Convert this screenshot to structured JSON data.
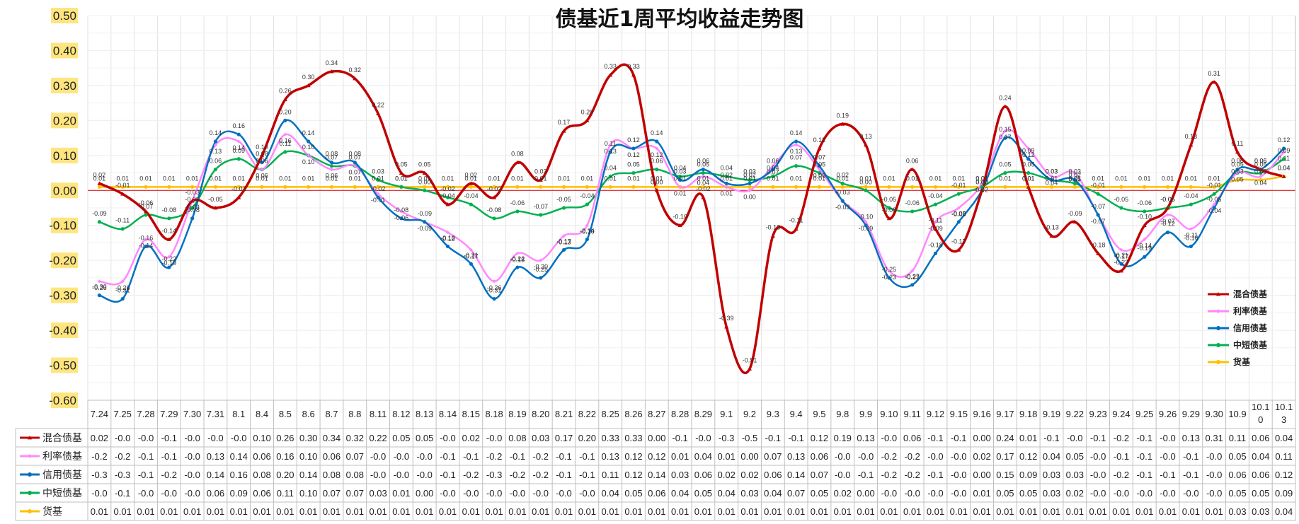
{
  "chart_data": {
    "type": "line",
    "title": "债基近1周平均收益走势图",
    "ylim": [
      -0.6,
      0.5
    ],
    "yticks": [
      "0.50",
      "0.40",
      "0.30",
      "0.20",
      "0.10",
      "0.00",
      "-0.10",
      "-0.20",
      "-0.30",
      "-0.40",
      "-0.50",
      "-0.60"
    ],
    "grid": true,
    "legend_position": "right",
    "categories": [
      "7.24",
      "7.25",
      "7.28",
      "7.29",
      "7.30",
      "7.31",
      "8.1",
      "8.4",
      "8.5",
      "8.6",
      "8.7",
      "8.8",
      "8.11",
      "8.12",
      "8.13",
      "8.14",
      "8.15",
      "8.18",
      "8.19",
      "8.20",
      "8.21",
      "8.22",
      "8.25",
      "8.26",
      "8.27",
      "8.28",
      "8.29",
      "9.1",
      "9.2",
      "9.3",
      "9.4",
      "9.5",
      "9.8",
      "9.9",
      "9.10",
      "9.11",
      "9.12",
      "9.15",
      "9.16",
      "9.17",
      "9.18",
      "9.19",
      "9.22",
      "9.23",
      "9.24",
      "9.25",
      "9.26",
      "9.29",
      "9.30",
      "10.9",
      "10.10",
      "10.13"
    ],
    "category_labels": [
      "7.24",
      "7.25",
      "7.28",
      "7.29",
      "7.30",
      "7.31",
      "8.1",
      "8.4",
      "8.5",
      "8.6",
      "8.7",
      "8.8",
      "8.11",
      "8.12",
      "8.13",
      "8.14",
      "8.15",
      "8.18",
      "8.19",
      "8.20",
      "8.21",
      "8.22",
      "8.25",
      "8.26",
      "8.27",
      "8.28",
      "8.29",
      "9.1",
      "9.2",
      "9.3",
      "9.4",
      "9.5",
      "9.8",
      "9.9",
      "9.10",
      "9.11",
      "9.12",
      "9.15",
      "9.16",
      "9.17",
      "9.18",
      "9.19",
      "9.22",
      "9.23",
      "9.24",
      "9.25",
      "9.26",
      "9.29",
      "9.30",
      "10.9",
      "10.1\n0",
      "10.1\n3"
    ],
    "series": [
      {
        "name": "混合债基",
        "color": "#c00000",
        "marker": "triangle",
        "values": [
          0.02,
          -0.01,
          -0.06,
          -0.14,
          -0.03,
          -0.05,
          -0.02,
          0.1,
          0.26,
          0.3,
          0.34,
          0.32,
          0.22,
          0.05,
          0.05,
          -0.04,
          0.02,
          -0.02,
          0.08,
          0.03,
          0.17,
          0.2,
          0.33,
          0.33,
          0.0,
          -0.1,
          -0.02,
          -0.39,
          -0.51,
          -0.13,
          -0.11,
          0.12,
          0.19,
          0.13,
          -0.08,
          0.06,
          -0.11,
          -0.17,
          0.0,
          0.24,
          0.01,
          -0.13,
          -0.09,
          -0.18,
          -0.23,
          -0.1,
          -0.05,
          0.13,
          0.31,
          0.11,
          0.06,
          0.04
        ],
        "labels": [
          "0.02",
          "-0.01",
          "-0.06",
          "-0.14",
          "-0.03",
          "-0.05",
          "-0.02",
          "0.10",
          "0.26",
          "0.30",
          "0.34",
          "0.32",
          "0.22",
          "0.05",
          "0.05",
          "-0.04",
          "0.02",
          "-0.02",
          "0.08",
          "0.03",
          "0.17",
          "0.20",
          "0.33",
          "0.33",
          "0.00",
          "-0.10",
          "-0.02",
          "-0.39",
          "-0.51",
          "-0.13",
          "-0.11",
          "0.12",
          "0.19",
          "0.13",
          "-0.08",
          "0.06",
          "-0.11",
          "-0.17",
          "0.00",
          "0.24",
          "0.01",
          "-0.13",
          "-0.09",
          "-0.18",
          "-0.23",
          "-0.10",
          "-0.05",
          "0.13",
          "0.31",
          "0.11",
          "0.06",
          "0.04"
        ]
      },
      {
        "name": "利率债基",
        "color": "#ff88ff",
        "marker": "diamond",
        "values": [
          -0.26,
          -0.26,
          -0.14,
          -0.19,
          -0.03,
          0.13,
          0.14,
          0.06,
          0.16,
          0.1,
          0.06,
          0.07,
          -0.01,
          -0.06,
          -0.09,
          -0.12,
          -0.17,
          -0.26,
          -0.18,
          -0.2,
          -0.13,
          -0.1,
          0.13,
          0.12,
          0.12,
          0.01,
          0.04,
          0.01,
          0.0,
          0.07,
          0.13,
          0.06,
          -0.03,
          -0.09,
          -0.23,
          -0.23,
          -0.09,
          -0.05,
          0.02,
          0.17,
          0.12,
          0.04,
          0.05,
          -0.07,
          -0.17,
          -0.14,
          -0.07,
          -0.11,
          -0.04,
          0.05,
          0.04,
          0.11
        ],
        "labels": [
          "-0.26",
          "-0.26",
          "-0.14",
          "-0.19",
          "-0.03",
          "0.13",
          "0.14",
          "0.06",
          "0.16",
          "0.10",
          "0.06",
          "0.07",
          "-0.01",
          "-0.06",
          "-0.09",
          "-0.12",
          "-0.17",
          "-0.26",
          "-0.18",
          "-0.20",
          "-0.13",
          "-0.10",
          "0.13",
          "0.12",
          "0.12",
          "0.01",
          "0.04",
          "0.01",
          "0.00",
          "0.07",
          "0.13",
          "0.06",
          "-0.03",
          "-0.09",
          "-0.23",
          "-0.23",
          "-0.09",
          "-0.05",
          "0.02",
          "0.17",
          "0.12",
          "0.04",
          "0.05",
          "-0.07",
          "-0.17",
          "-0.14",
          "-0.07",
          "-0.11",
          "-0.04",
          "0.05",
          "0.04",
          "0.11"
        ]
      },
      {
        "name": "信用债基",
        "color": "#0070c0",
        "marker": "circle",
        "values": [
          -0.3,
          -0.31,
          -0.16,
          -0.22,
          -0.08,
          0.14,
          0.16,
          0.08,
          0.2,
          0.14,
          0.08,
          0.08,
          -0.02,
          -0.08,
          -0.09,
          -0.16,
          -0.21,
          -0.31,
          -0.22,
          -0.25,
          -0.17,
          -0.14,
          0.11,
          0.12,
          0.14,
          0.03,
          0.06,
          0.02,
          0.02,
          0.06,
          0.14,
          0.07,
          -0.03,
          -0.1,
          -0.25,
          -0.27,
          -0.18,
          -0.09,
          0.0,
          0.15,
          0.09,
          0.03,
          0.03,
          -0.07,
          -0.21,
          -0.19,
          -0.12,
          -0.16,
          -0.05,
          0.06,
          0.06,
          0.12
        ],
        "labels": [
          "-0.30",
          "-0.31",
          "-0.16",
          "-0.22",
          "-0.08",
          "0.14",
          "0.16",
          "0.08",
          "0.20",
          "0.14",
          "0.08",
          "0.08",
          "-0.02",
          "-0.08",
          "-0.09",
          "-0.16",
          "-0.21",
          "-0.31",
          "-0.22",
          "-0.25",
          "-0.17",
          "-0.14",
          "0.11",
          "0.12",
          "0.14",
          "0.03",
          "0.06",
          "0.02",
          "0.02",
          "0.06",
          "0.14",
          "0.07",
          "-0.03",
          "-0.10",
          "-0.25",
          "-0.27",
          "-0.18",
          "-0.09",
          "0.00",
          "0.15",
          "0.09",
          "0.03",
          "0.03",
          "-0.07",
          "-0.21",
          "-0.19",
          "-0.12",
          "-0.16",
          "-0.05",
          "0.06",
          "0.06",
          "0.12"
        ]
      },
      {
        "name": "中短债基",
        "color": "#00b050",
        "marker": "circle",
        "values": [
          -0.09,
          -0.11,
          -0.07,
          -0.08,
          -0.05,
          0.06,
          0.09,
          0.06,
          0.11,
          0.1,
          0.07,
          0.07,
          0.03,
          0.01,
          0.0,
          -0.02,
          -0.04,
          -0.08,
          -0.06,
          -0.07,
          -0.05,
          -0.04,
          0.04,
          0.05,
          0.06,
          0.04,
          0.05,
          0.04,
          0.03,
          0.04,
          0.07,
          0.05,
          0.02,
          0.0,
          -0.05,
          -0.06,
          -0.04,
          -0.01,
          0.01,
          0.05,
          0.05,
          0.03,
          0.02,
          -0.01,
          -0.05,
          -0.06,
          -0.05,
          -0.04,
          -0.01,
          0.05,
          0.05,
          0.09
        ],
        "labels": [
          "-0.09",
          "-0.11",
          "-0.07",
          "-0.08",
          "-0.05",
          "0.06",
          "0.09",
          "0.06",
          "0.11",
          "0.10",
          "0.07",
          "0.07",
          "0.03",
          "0.01",
          "0.00",
          "-0.02",
          "-0.04",
          "-0.08",
          "-0.06",
          "-0.07",
          "-0.05",
          "-0.04",
          "0.04",
          "0.05",
          "0.06",
          "0.04",
          "0.05",
          "0.04",
          "0.03",
          "0.04",
          "0.07",
          "0.05",
          "0.02",
          "0.00",
          "-0.05",
          "-0.06",
          "-0.04",
          "-0.01",
          "0.01",
          "0.05",
          "0.05",
          "0.03",
          "0.02",
          "-0.01",
          "-0.05",
          "-0.06",
          "-0.05",
          "-0.04",
          "-0.01",
          "0.05",
          "0.05",
          "0.09"
        ]
      },
      {
        "name": "货基",
        "color": "#ffc000",
        "marker": "circle",
        "values": [
          0.01,
          0.01,
          0.01,
          0.01,
          0.01,
          0.01,
          0.01,
          0.01,
          0.01,
          0.01,
          0.01,
          0.01,
          0.01,
          0.01,
          0.01,
          0.01,
          0.01,
          0.01,
          0.01,
          0.01,
          0.01,
          0.01,
          0.01,
          0.01,
          0.01,
          0.01,
          0.01,
          0.01,
          0.01,
          0.01,
          0.01,
          0.01,
          0.01,
          0.01,
          0.01,
          0.01,
          0.01,
          0.01,
          0.01,
          0.01,
          0.01,
          0.01,
          0.01,
          0.01,
          0.01,
          0.01,
          0.01,
          0.01,
          0.01,
          0.03,
          0.03,
          0.04
        ],
        "labels": [
          "0.01",
          "0.01",
          "0.01",
          "0.01",
          "0.01",
          "0.01",
          "0.01",
          "0.01",
          "0.01",
          "0.01",
          "0.01",
          "0.01",
          "0.01",
          "0.01",
          "0.01",
          "0.01",
          "0.01",
          "0.01",
          "0.01",
          "0.01",
          "0.01",
          "0.01",
          "0.01",
          "0.01",
          "0.01",
          "0.01",
          "0.01",
          "0.01",
          "0.01",
          "0.01",
          "0.01",
          "0.01",
          "0.01",
          "0.01",
          "0.01",
          "0.01",
          "0.01",
          "0.01",
          "0.01",
          "0.01",
          "0.01",
          "0.01",
          "0.01",
          "0.01",
          "0.01",
          "0.01",
          "0.01",
          "0.01",
          "0.01",
          "0.03",
          "0.03",
          "0.04"
        ]
      }
    ],
    "table": {
      "rows": [
        {
          "name": "混合债基",
          "cells": [
            "0.02",
            "-0.0",
            "-0.0",
            "-0.1",
            "-0.0",
            "-0.0",
            "-0.0",
            "0.10",
            "0.26",
            "0.30",
            "0.34",
            "0.32",
            "0.22",
            "0.05",
            "0.05",
            "-0.0",
            "0.02",
            "-0.0",
            "0.08",
            "0.03",
            "0.17",
            "0.20",
            "0.33",
            "0.33",
            "0.00",
            "-0.1",
            "-0.0",
            "-0.3",
            "-0.5",
            "-0.1",
            "-0.1",
            "0.12",
            "0.19",
            "0.13",
            "-0.0",
            "0.06",
            "-0.1",
            "-0.1",
            "0.00",
            "0.24",
            "0.01",
            "-0.1",
            "-0.0",
            "-0.1",
            "-0.2",
            "-0.1",
            "-0.0",
            "0.13",
            "0.31",
            "0.11",
            "0.06",
            "0.04"
          ]
        },
        {
          "name": "利率债基",
          "cells": [
            "-0.2",
            "-0.2",
            "-0.1",
            "-0.1",
            "-0.0",
            "0.13",
            "0.14",
            "0.06",
            "0.16",
            "0.10",
            "0.06",
            "0.07",
            "-0.0",
            "-0.0",
            "-0.0",
            "-0.1",
            "-0.1",
            "-0.2",
            "-0.1",
            "-0.2",
            "-0.1",
            "-0.1",
            "0.13",
            "0.12",
            "0.12",
            "0.01",
            "0.04",
            "0.01",
            "0.00",
            "0.07",
            "0.13",
            "0.06",
            "-0.0",
            "-0.0",
            "-0.2",
            "-0.2",
            "-0.0",
            "-0.0",
            "0.02",
            "0.17",
            "0.12",
            "0.04",
            "0.05",
            "-0.0",
            "-0.1",
            "-0.1",
            "-0.0",
            "-0.1",
            "-0.0",
            "0.05",
            "0.04",
            "0.11"
          ]
        },
        {
          "name": "信用债基",
          "cells": [
            "-0.3",
            "-0.3",
            "-0.1",
            "-0.2",
            "-0.0",
            "0.14",
            "0.16",
            "0.08",
            "0.20",
            "0.14",
            "0.08",
            "0.08",
            "-0.0",
            "-0.0",
            "-0.0",
            "-0.1",
            "-0.2",
            "-0.3",
            "-0.2",
            "-0.2",
            "-0.1",
            "-0.1",
            "0.11",
            "0.12",
            "0.14",
            "0.03",
            "0.06",
            "0.02",
            "0.02",
            "0.06",
            "0.14",
            "0.07",
            "-0.0",
            "-0.1",
            "-0.2",
            "-0.2",
            "-0.1",
            "-0.0",
            "0.00",
            "0.15",
            "0.09",
            "0.03",
            "0.03",
            "-0.0",
            "-0.2",
            "-0.1",
            "-0.1",
            "-0.1",
            "-0.0",
            "0.06",
            "0.06",
            "0.12"
          ]
        },
        {
          "name": "中短债基",
          "cells": [
            "-0.0",
            "-0.1",
            "-0.0",
            "-0.0",
            "-0.0",
            "0.06",
            "0.09",
            "0.06",
            "0.11",
            "0.10",
            "0.07",
            "0.07",
            "0.03",
            "0.01",
            "0.00",
            "-0.0",
            "-0.0",
            "-0.0",
            "-0.0",
            "-0.0",
            "-0.0",
            "-0.0",
            "0.04",
            "0.05",
            "0.06",
            "0.04",
            "0.05",
            "0.04",
            "0.03",
            "0.04",
            "0.07",
            "0.05",
            "0.02",
            "0.00",
            "-0.0",
            "-0.0",
            "-0.0",
            "-0.0",
            "0.01",
            "0.05",
            "0.05",
            "0.03",
            "0.02",
            "-0.0",
            "-0.0",
            "-0.0",
            "-0.0",
            "-0.0",
            "-0.0",
            "0.05",
            "0.05",
            "0.09"
          ]
        },
        {
          "name": "货基",
          "cells": [
            "0.01",
            "0.01",
            "0.01",
            "0.01",
            "0.01",
            "0.01",
            "0.01",
            "0.01",
            "0.01",
            "0.01",
            "0.01",
            "0.01",
            "0.01",
            "0.01",
            "0.01",
            "0.01",
            "0.01",
            "0.01",
            "0.01",
            "0.01",
            "0.01",
            "0.01",
            "0.01",
            "0.01",
            "0.01",
            "0.01",
            "0.01",
            "0.01",
            "0.01",
            "0.01",
            "0.01",
            "0.01",
            "0.01",
            "0.01",
            "0.01",
            "0.01",
            "0.01",
            "0.01",
            "0.01",
            "0.01",
            "0.01",
            "0.01",
            "0.01",
            "0.01",
            "0.01",
            "0.01",
            "0.01",
            "0.01",
            "0.01",
            "0.03",
            "0.03",
            "0.04"
          ]
        }
      ]
    }
  }
}
